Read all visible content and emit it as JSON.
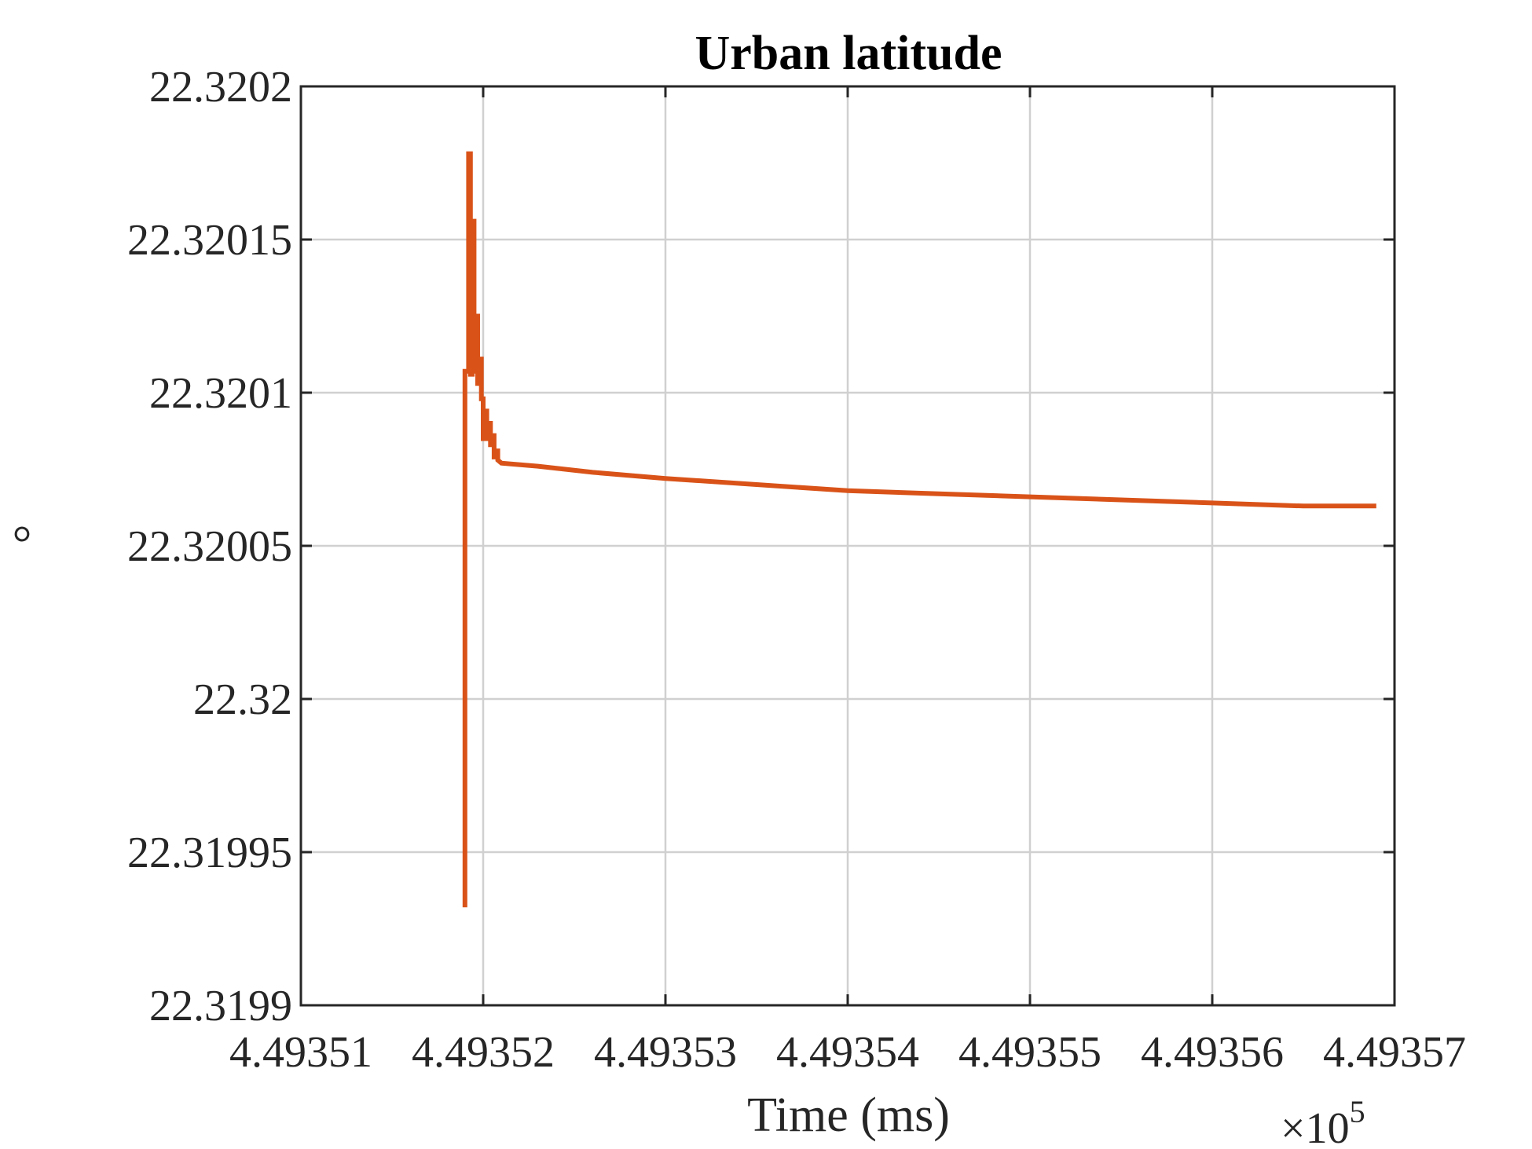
{
  "chart_data": {
    "type": "line",
    "title": "Urban latitude",
    "xlabel": "Time (ms)",
    "ylabel": "°",
    "x_exponent_label": "×10",
    "x_exponent_power": "5",
    "xlim": [
      449351,
      449357
    ],
    "ylim": [
      22.3199,
      22.3202
    ],
    "x_ticks": [
      449351,
      449352,
      449353,
      449354,
      449355,
      449356,
      449357
    ],
    "x_tick_labels": [
      "4.49351",
      "4.49352",
      "4.49353",
      "4.49354",
      "4.49355",
      "4.49356",
      "4.49357"
    ],
    "y_ticks": [
      22.3199,
      22.31995,
      22.32,
      22.32005,
      22.3201,
      22.32015,
      22.3202
    ],
    "y_tick_labels": [
      "22.3199",
      "22.31995",
      "22.32",
      "22.32005",
      "22.3201",
      "22.32015",
      "22.3202"
    ],
    "grid": true,
    "series": [
      {
        "color": "#D95319",
        "x": [
          449351.9,
          449351.9,
          449351.92,
          449351.92,
          449351.93,
          449351.93,
          449351.94,
          449351.94,
          449351.95,
          449351.95,
          449351.96,
          449351.96,
          449351.97,
          449351.97,
          449351.98,
          449351.98,
          449351.99,
          449351.99,
          449352.0,
          449352.0,
          449352.01,
          449352.01,
          449352.02,
          449352.02,
          449352.03,
          449352.03,
          449352.04,
          449352.04,
          449352.05,
          449352.05,
          449352.06,
          449352.06,
          449352.07,
          449352.07,
          449352.08,
          449352.08,
          449352.1,
          449352.3,
          449352.6,
          449353.0,
          449353.5,
          449354.0,
          449354.5,
          449355.0,
          449355.5,
          449356.0,
          449356.5,
          449356.9
        ],
        "y": [
          22.319932,
          22.320107,
          22.320107,
          22.320178,
          22.320178,
          22.320106,
          22.320106,
          22.320156,
          22.320156,
          22.320107,
          22.320107,
          22.320125,
          22.320125,
          22.320103,
          22.320103,
          22.320111,
          22.320111,
          22.320098,
          22.320098,
          22.320085,
          22.320085,
          22.320094,
          22.320094,
          22.320085,
          22.320085,
          22.32009,
          22.32009,
          22.320083,
          22.320083,
          22.320086,
          22.320086,
          22.320079,
          22.320079,
          22.320081,
          22.320081,
          22.320078,
          22.320077,
          22.320076,
          22.320074,
          22.320072,
          22.32007,
          22.320068,
          22.320067,
          22.320066,
          22.320065,
          22.320064,
          22.320063,
          22.320063
        ]
      }
    ]
  }
}
